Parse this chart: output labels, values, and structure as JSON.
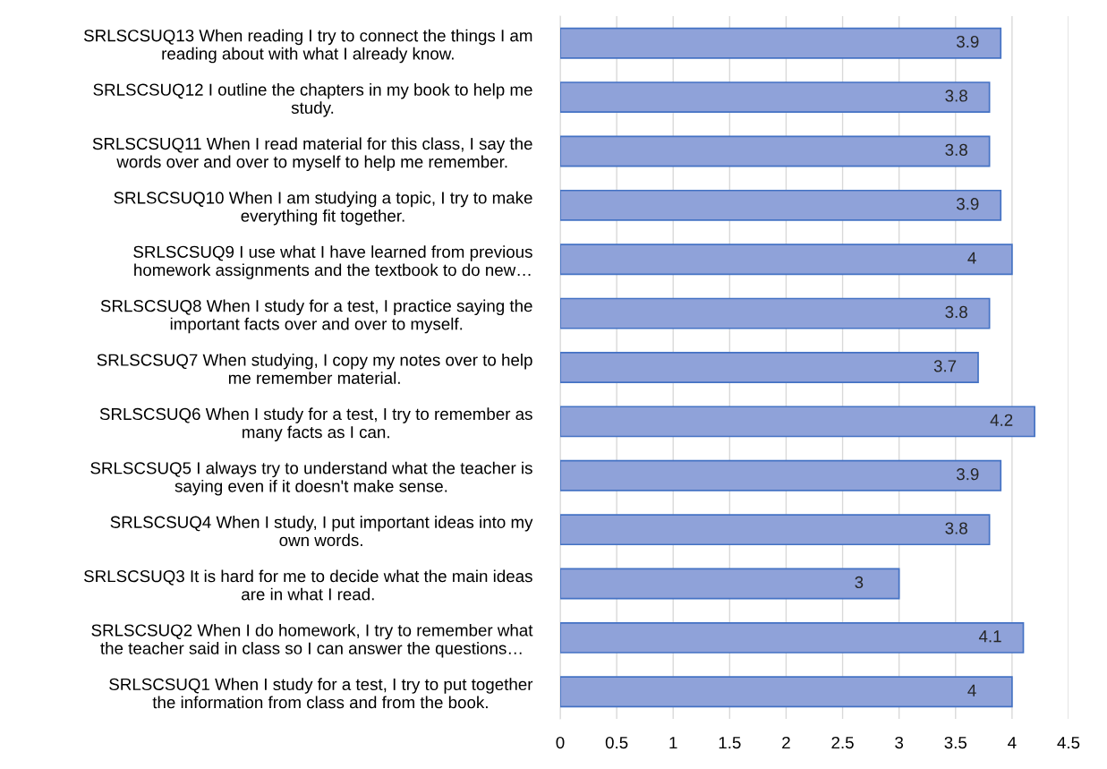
{
  "chart_data": {
    "type": "bar",
    "orientation": "horizontal",
    "categories": [
      "SRLSCSUQ13 When reading I try to connect the things I am\nreading about with what I already know.",
      "SRLSCSUQ12 I outline the chapters in my book to help me\nstudy.",
      "SRLSCSUQ11 When I read material for this class, I say the\nwords over and over to myself to help me remember.",
      "SRLSCSUQ10 When I am studying a topic, I try to make\neverything fit together.",
      "SRLSCSUQ9 I use what I have learned from previous\nhomework assignments and the textbook to do new…",
      "SRLSCSUQ8 When I study for a test, I practice saying the\nimportant facts over and over to myself.",
      "SRLSCSUQ7 When studying, I copy my notes over to help\nme remember material.",
      "SRLSCSUQ6 When I study for a test, I try to remember as\nmany facts as I can.",
      "SRLSCSUQ5 I always try to understand what the teacher is\nsaying even if it doesn't make sense.",
      "SRLSCSUQ4 When I study, I put important ideas into my\nown words.",
      "SRLSCSUQ3 It is hard for me to decide what the main ideas\nare in what I read.",
      "SRLSCSUQ2 When I do homework, I try to remember what\nthe teacher said in class so I can answer the questions…",
      "SRLSCSUQ1 When I study for a test, I try to put together\nthe information from class and from the book."
    ],
    "values": [
      3.9,
      3.8,
      3.8,
      3.9,
      4,
      3.8,
      3.7,
      4.2,
      3.9,
      3.8,
      3,
      4.1,
      4
    ],
    "color": "#8fa2d9",
    "xlim": [
      0,
      4.5
    ],
    "xticks": [
      0,
      0.5,
      1,
      1.5,
      2,
      2.5,
      3,
      3.5,
      4,
      4.5
    ],
    "grid": "x",
    "data_labels": true
  }
}
